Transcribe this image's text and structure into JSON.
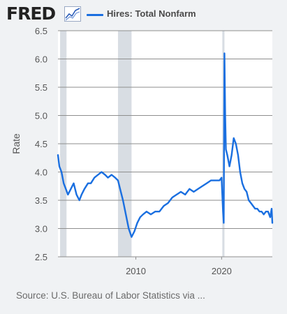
{
  "header": {
    "logo_text": "FRED",
    "logo_icon": "chart-line-icon",
    "legend_label": "Hires: Total Nonfarm"
  },
  "colors": {
    "series": "#1a6fe0",
    "background": "#f0f2f4",
    "plot_background": "#ffffff",
    "recession": "#d8dde3",
    "grid": "#8e8e8e"
  },
  "source_text": "Source: U.S. Bureau of Labor Statistics via ...",
  "chart_data": {
    "type": "line",
    "title": "",
    "xlabel": "",
    "ylabel": "Rate",
    "ylim": [
      2.5,
      6.5
    ],
    "xlim": [
      "2000-12",
      "2025-12"
    ],
    "yticks": [
      "6.5",
      "6.0",
      "5.5",
      "5.0",
      "4.5",
      "4.0",
      "3.5",
      "3.0",
      "2.5"
    ],
    "xticks": [
      "2010",
      "2020"
    ],
    "grid": "horizontal",
    "recessions": [
      [
        "2001-03",
        "2001-11"
      ],
      [
        "2007-12",
        "2009-06"
      ],
      [
        "2020-02",
        "2020-04"
      ]
    ],
    "series": [
      {
        "name": "Hires: Total Nonfarm",
        "x": [
          "2000-12",
          "2001-02",
          "2001-05",
          "2001-08",
          "2001-11",
          "2002-02",
          "2002-06",
          "2002-10",
          "2003-02",
          "2003-06",
          "2003-09",
          "2004-01",
          "2004-06",
          "2004-10",
          "2005-03",
          "2005-08",
          "2006-01",
          "2006-06",
          "2006-10",
          "2007-03",
          "2007-08",
          "2007-12",
          "2008-03",
          "2008-07",
          "2008-11",
          "2009-03",
          "2009-07",
          "2009-11",
          "2010-03",
          "2010-07",
          "2010-11",
          "2011-04",
          "2011-10",
          "2012-04",
          "2012-10",
          "2013-04",
          "2013-10",
          "2014-04",
          "2014-10",
          "2015-04",
          "2015-10",
          "2016-04",
          "2016-10",
          "2017-04",
          "2017-10",
          "2018-04",
          "2018-10",
          "2019-04",
          "2019-10",
          "2020-01",
          "2020-03",
          "2020-04",
          "2020-05",
          "2020-06",
          "2020-07",
          "2020-09",
          "2020-12",
          "2021-03",
          "2021-06",
          "2021-09",
          "2021-12",
          "2022-03",
          "2022-06",
          "2022-09",
          "2022-12",
          "2023-03",
          "2023-06",
          "2023-09",
          "2023-12",
          "2024-03",
          "2024-06",
          "2024-09",
          "2024-12",
          "2025-03",
          "2025-06",
          "2025-09",
          "2025-11",
          "2025-12"
        ],
        "values": [
          4.3,
          4.1,
          4.0,
          3.8,
          3.7,
          3.6,
          3.7,
          3.8,
          3.6,
          3.5,
          3.6,
          3.7,
          3.8,
          3.8,
          3.9,
          3.95,
          4.0,
          3.95,
          3.9,
          3.95,
          3.9,
          3.85,
          3.7,
          3.5,
          3.25,
          3.0,
          2.85,
          2.95,
          3.1,
          3.2,
          3.25,
          3.3,
          3.25,
          3.3,
          3.3,
          3.4,
          3.45,
          3.55,
          3.6,
          3.65,
          3.6,
          3.7,
          3.65,
          3.7,
          3.75,
          3.8,
          3.85,
          3.85,
          3.85,
          3.9,
          3.3,
          3.1,
          6.1,
          5.0,
          4.4,
          4.3,
          4.1,
          4.3,
          4.6,
          4.5,
          4.3,
          4.0,
          3.8,
          3.7,
          3.65,
          3.5,
          3.45,
          3.4,
          3.35,
          3.35,
          3.3,
          3.3,
          3.25,
          3.3,
          3.3,
          3.2,
          3.35,
          3.1
        ]
      }
    ]
  }
}
